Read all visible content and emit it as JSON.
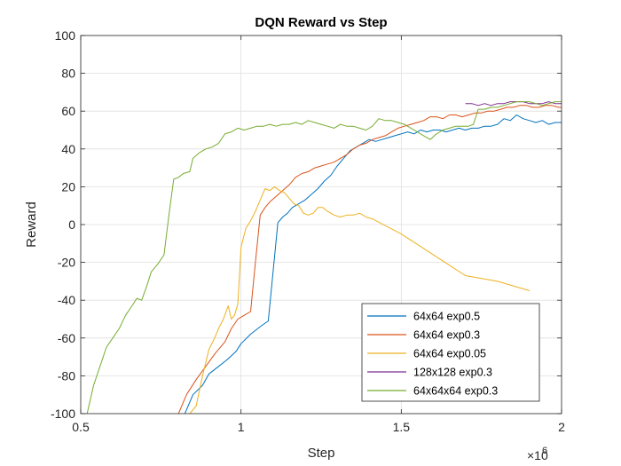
{
  "chart_data": {
    "type": "line",
    "title": "DQN Reward vs Step",
    "xlabel": "Step",
    "ylabel": "Reward",
    "x_exponent_base": "×10",
    "x_exponent_power": "6",
    "xlim": [
      500000,
      2000000
    ],
    "ylim": [
      -100,
      100
    ],
    "xticks": [
      500000,
      1000000,
      1500000,
      2000000
    ],
    "xtick_labels": [
      "0.5",
      "1",
      "1.5",
      "2"
    ],
    "yticks": [
      -100,
      -80,
      -60,
      -40,
      -20,
      0,
      20,
      40,
      60,
      80,
      100
    ],
    "ytick_labels": [
      "-100",
      "-80",
      "-60",
      "-40",
      "-20",
      "0",
      "20",
      "40",
      "60",
      "80",
      "100"
    ],
    "grid": true,
    "legend_position": "bottom-right",
    "series": [
      {
        "name": "64x64 exp0.5",
        "color": "#0072BD",
        "points": [
          [
            825000,
            -100
          ],
          [
            850000,
            -90
          ],
          [
            880000,
            -85
          ],
          [
            900000,
            -79
          ],
          [
            930000,
            -75
          ],
          [
            960000,
            -71
          ],
          [
            985000,
            -67
          ],
          [
            1000000,
            -63
          ],
          [
            1030000,
            -58
          ],
          [
            1060000,
            -54
          ],
          [
            1085000,
            -51
          ],
          [
            1100000,
            -25
          ],
          [
            1115000,
            1
          ],
          [
            1130000,
            4
          ],
          [
            1145000,
            6
          ],
          [
            1160000,
            9
          ],
          [
            1180000,
            11
          ],
          [
            1200000,
            13
          ],
          [
            1220000,
            16
          ],
          [
            1240000,
            19
          ],
          [
            1260000,
            23
          ],
          [
            1280000,
            26
          ],
          [
            1300000,
            31
          ],
          [
            1320000,
            35
          ],
          [
            1340000,
            39
          ],
          [
            1360000,
            41
          ],
          [
            1380000,
            43
          ],
          [
            1400000,
            45
          ],
          [
            1420000,
            44
          ],
          [
            1440000,
            45
          ],
          [
            1460000,
            46
          ],
          [
            1480000,
            47
          ],
          [
            1500000,
            48
          ],
          [
            1520000,
            49
          ],
          [
            1540000,
            48
          ],
          [
            1560000,
            50
          ],
          [
            1580000,
            49
          ],
          [
            1600000,
            50
          ],
          [
            1620000,
            50
          ],
          [
            1640000,
            49
          ],
          [
            1660000,
            50
          ],
          [
            1680000,
            51
          ],
          [
            1700000,
            50
          ],
          [
            1720000,
            51
          ],
          [
            1740000,
            51
          ],
          [
            1760000,
            52
          ],
          [
            1780000,
            52
          ],
          [
            1800000,
            53
          ],
          [
            1820000,
            56
          ],
          [
            1840000,
            55
          ],
          [
            1860000,
            58
          ],
          [
            1880000,
            56
          ],
          [
            1900000,
            55
          ],
          [
            1920000,
            54
          ],
          [
            1940000,
            55
          ],
          [
            1960000,
            53
          ],
          [
            1980000,
            54
          ],
          [
            2000000,
            54
          ]
        ]
      },
      {
        "name": "64x64 exp0.3",
        "color": "#D95319",
        "points": [
          [
            805000,
            -100
          ],
          [
            830000,
            -90
          ],
          [
            860000,
            -82
          ],
          [
            890000,
            -75
          ],
          [
            920000,
            -68
          ],
          [
            950000,
            -62
          ],
          [
            970000,
            -55
          ],
          [
            990000,
            -50
          ],
          [
            1010000,
            -48
          ],
          [
            1030000,
            -46
          ],
          [
            1045000,
            -20
          ],
          [
            1060000,
            5
          ],
          [
            1075000,
            9
          ],
          [
            1090000,
            12
          ],
          [
            1110000,
            15
          ],
          [
            1130000,
            18
          ],
          [
            1150000,
            21
          ],
          [
            1170000,
            25
          ],
          [
            1190000,
            27
          ],
          [
            1210000,
            28
          ],
          [
            1230000,
            30
          ],
          [
            1250000,
            31
          ],
          [
            1270000,
            32
          ],
          [
            1290000,
            33
          ],
          [
            1310000,
            35
          ],
          [
            1330000,
            37
          ],
          [
            1350000,
            40
          ],
          [
            1370000,
            42
          ],
          [
            1390000,
            43
          ],
          [
            1410000,
            45
          ],
          [
            1430000,
            46
          ],
          [
            1450000,
            47
          ],
          [
            1470000,
            49
          ],
          [
            1490000,
            51
          ],
          [
            1510000,
            52
          ],
          [
            1530000,
            53
          ],
          [
            1550000,
            54
          ],
          [
            1570000,
            55
          ],
          [
            1590000,
            57
          ],
          [
            1610000,
            57
          ],
          [
            1630000,
            56
          ],
          [
            1650000,
            58
          ],
          [
            1670000,
            58
          ],
          [
            1690000,
            57
          ],
          [
            1710000,
            58
          ],
          [
            1730000,
            59
          ],
          [
            1750000,
            59
          ],
          [
            1770000,
            60
          ],
          [
            1790000,
            60
          ],
          [
            1810000,
            61
          ],
          [
            1830000,
            62
          ],
          [
            1850000,
            62
          ],
          [
            1870000,
            63
          ],
          [
            1890000,
            63
          ],
          [
            1910000,
            62
          ],
          [
            1930000,
            62
          ],
          [
            1950000,
            63
          ],
          [
            1970000,
            63
          ],
          [
            1990000,
            62
          ],
          [
            2000000,
            62
          ]
        ]
      },
      {
        "name": "64x64 exp0.05",
        "color": "#EDB120",
        "points": [
          [
            840000,
            -100
          ],
          [
            860000,
            -96
          ],
          [
            880000,
            -80
          ],
          [
            900000,
            -66
          ],
          [
            915000,
            -61
          ],
          [
            930000,
            -55
          ],
          [
            945000,
            -50
          ],
          [
            960000,
            -43
          ],
          [
            970000,
            -50
          ],
          [
            980000,
            -48
          ],
          [
            990000,
            -42
          ],
          [
            1000000,
            -12
          ],
          [
            1015000,
            -2
          ],
          [
            1030000,
            2
          ],
          [
            1045000,
            7
          ],
          [
            1060000,
            13
          ],
          [
            1075000,
            19
          ],
          [
            1090000,
            18
          ],
          [
            1105000,
            20
          ],
          [
            1120000,
            18
          ],
          [
            1135000,
            17
          ],
          [
            1150000,
            14
          ],
          [
            1165000,
            11
          ],
          [
            1180000,
            10
          ],
          [
            1195000,
            6
          ],
          [
            1210000,
            5
          ],
          [
            1225000,
            6
          ],
          [
            1240000,
            9
          ],
          [
            1255000,
            9
          ],
          [
            1270000,
            7
          ],
          [
            1290000,
            5
          ],
          [
            1310000,
            4
          ],
          [
            1330000,
            5
          ],
          [
            1350000,
            5
          ],
          [
            1370000,
            6
          ],
          [
            1390000,
            4
          ],
          [
            1410000,
            3
          ],
          [
            1500000,
            -5
          ],
          [
            1700000,
            -27
          ],
          [
            1800000,
            -30
          ],
          [
            1900000,
            -35
          ]
        ]
      },
      {
        "name": "128x128 exp0.3",
        "color": "#7E2F8E",
        "points": [
          [
            1700000,
            64
          ],
          [
            1720000,
            64
          ],
          [
            1740000,
            63
          ],
          [
            1760000,
            64
          ],
          [
            1780000,
            63
          ],
          [
            1800000,
            64
          ],
          [
            1820000,
            64
          ],
          [
            1840000,
            65
          ],
          [
            1860000,
            65
          ],
          [
            1880000,
            65
          ],
          [
            1900000,
            64
          ],
          [
            1920000,
            64
          ],
          [
            1940000,
            64
          ],
          [
            1960000,
            65
          ],
          [
            1980000,
            64
          ],
          [
            2000000,
            64
          ]
        ]
      },
      {
        "name": "64x64x64 exp0.3",
        "color": "#77AC30",
        "points": [
          [
            520000,
            -100
          ],
          [
            540000,
            -85
          ],
          [
            560000,
            -75
          ],
          [
            580000,
            -65
          ],
          [
            600000,
            -60
          ],
          [
            620000,
            -55
          ],
          [
            640000,
            -48
          ],
          [
            660000,
            -43
          ],
          [
            675000,
            -39
          ],
          [
            690000,
            -40
          ],
          [
            705000,
            -33
          ],
          [
            720000,
            -25
          ],
          [
            740000,
            -21
          ],
          [
            760000,
            -16
          ],
          [
            775000,
            5
          ],
          [
            790000,
            24
          ],
          [
            805000,
            25
          ],
          [
            820000,
            27
          ],
          [
            840000,
            28
          ],
          [
            850000,
            35
          ],
          [
            870000,
            38
          ],
          [
            890000,
            40
          ],
          [
            910000,
            41
          ],
          [
            930000,
            43
          ],
          [
            950000,
            48
          ],
          [
            970000,
            49
          ],
          [
            990000,
            51
          ],
          [
            1010000,
            50
          ],
          [
            1030000,
            51
          ],
          [
            1050000,
            52
          ],
          [
            1070000,
            52
          ],
          [
            1090000,
            53
          ],
          [
            1110000,
            52
          ],
          [
            1130000,
            53
          ],
          [
            1150000,
            53
          ],
          [
            1170000,
            54
          ],
          [
            1190000,
            53
          ],
          [
            1210000,
            55
          ],
          [
            1230000,
            54
          ],
          [
            1250000,
            53
          ],
          [
            1270000,
            52
          ],
          [
            1290000,
            51
          ],
          [
            1310000,
            53
          ],
          [
            1330000,
            52
          ],
          [
            1350000,
            52
          ],
          [
            1370000,
            51
          ],
          [
            1390000,
            50
          ],
          [
            1410000,
            52
          ],
          [
            1430000,
            56
          ],
          [
            1450000,
            55
          ],
          [
            1470000,
            55
          ],
          [
            1490000,
            54
          ],
          [
            1510000,
            53
          ],
          [
            1530000,
            51
          ],
          [
            1550000,
            49
          ],
          [
            1570000,
            47
          ],
          [
            1590000,
            45
          ],
          [
            1610000,
            48
          ],
          [
            1630000,
            50
          ],
          [
            1650000,
            51
          ],
          [
            1670000,
            52
          ],
          [
            1690000,
            52
          ],
          [
            1710000,
            52
          ],
          [
            1725000,
            53
          ],
          [
            1740000,
            61
          ],
          [
            1760000,
            61
          ],
          [
            1780000,
            62
          ],
          [
            1800000,
            62
          ],
          [
            1820000,
            63
          ],
          [
            1840000,
            64
          ],
          [
            1860000,
            65
          ],
          [
            1880000,
            65
          ],
          [
            1900000,
            65
          ],
          [
            1920000,
            64
          ],
          [
            1940000,
            63
          ],
          [
            1960000,
            64
          ],
          [
            1980000,
            65
          ],
          [
            2000000,
            65
          ]
        ]
      }
    ]
  }
}
